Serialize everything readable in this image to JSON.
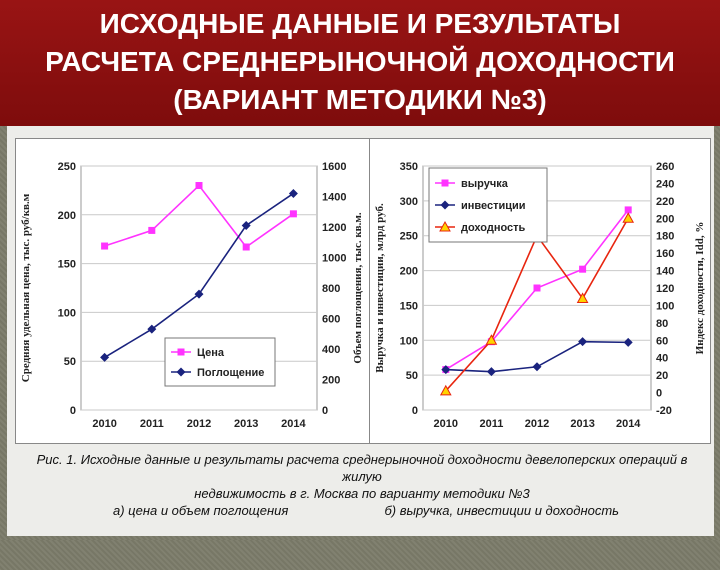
{
  "title": {
    "line1": "ИСХОДНЫЕ ДАННЫЕ И РЕЗУЛЬТАТЫ",
    "line2": "РАСЧЕТА СРЕДНЕРЫНОЧНОЙ ДОХОДНОСТИ",
    "line3": "(ВАРИАНТ МЕТОДИКИ №3)"
  },
  "caption": {
    "line1": "Рис. 1. Исходные данные и результаты расчета среднерыночной доходности девелоперских операций в жилую",
    "line2": "недвижимость в г. Москва по варианту методики №3",
    "sub_a": "а) цена и объем поглощения",
    "sub_b": "б) выручка, инвестиции и доходность"
  },
  "chart_data": [
    {
      "type": "line",
      "categories": [
        "2010",
        "2011",
        "2012",
        "2013",
        "2014"
      ],
      "ylabel": "Средняя удельная цена, тыс. руб/кв.м",
      "y2label": "Объем поглощения, тыс. кв.м.",
      "ylim": [
        0,
        250
      ],
      "y2lim": [
        0,
        1600
      ],
      "yticks": [
        "0",
        "50",
        "100",
        "150",
        "200",
        "250"
      ],
      "y2ticks": [
        "0",
        "200",
        "400",
        "600",
        "800",
        "1000",
        "1200",
        "1400",
        "1600"
      ],
      "grid": true,
      "legend_position": "bottom-left",
      "series": [
        {
          "name": "Цена",
          "axis": "left",
          "color": "#ff33ff",
          "marker": "square",
          "values": [
            168,
            184,
            230,
            167,
            201
          ]
        },
        {
          "name": "Поглощение",
          "axis": "right",
          "color": "#1a237e",
          "marker": "diamond",
          "values": [
            345,
            530,
            760,
            1210,
            1420
          ]
        }
      ]
    },
    {
      "type": "line",
      "categories": [
        "2010",
        "2011",
        "2012",
        "2013",
        "2014"
      ],
      "ylabel": "Выручка и инвестиции, млрд руб.",
      "y2label": "Индекс доходности, Idd, %",
      "ylim": [
        0,
        350
      ],
      "y2lim": [
        -20,
        260
      ],
      "yticks": [
        "0",
        "50",
        "100",
        "150",
        "200",
        "250",
        "300",
        "350"
      ],
      "y2ticks": [
        "-20",
        "0",
        "20",
        "40",
        "60",
        "80",
        "100",
        "120",
        "140",
        "160",
        "180",
        "200",
        "220",
        "240",
        "260"
      ],
      "grid": true,
      "legend_position": "top-left",
      "series": [
        {
          "name": "выручка",
          "axis": "left",
          "color": "#ff33ff",
          "marker": "square",
          "values": [
            58,
            98,
            175,
            202,
            287
          ]
        },
        {
          "name": "инвестиции",
          "axis": "left",
          "color": "#1a237e",
          "marker": "diamond",
          "values": [
            58,
            55,
            62,
            98,
            97
          ]
        },
        {
          "name": "доходность",
          "axis": "right",
          "color": "#e8250f",
          "marker": "triangle",
          "marker_fill": "#ffd400",
          "values": [
            2,
            60,
            180,
            108,
            200
          ]
        }
      ]
    }
  ]
}
